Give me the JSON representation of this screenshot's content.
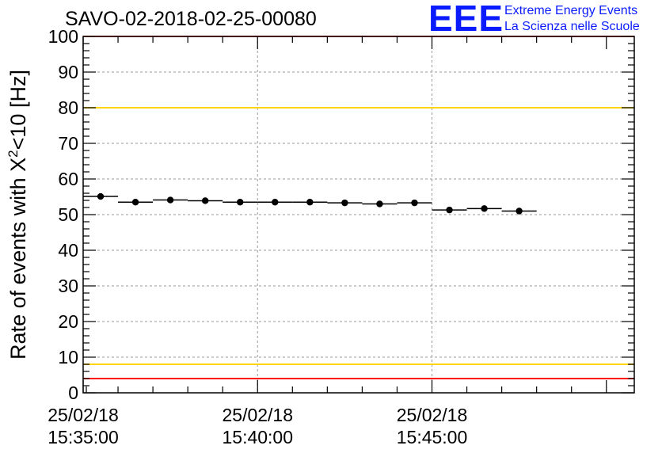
{
  "title": "SAVO-02-2018-02-25-00080",
  "logo": {
    "letters": "EEE",
    "line1": "Extreme Energy Events",
    "line2": "La Scienza nelle Scuole",
    "color": "#0a1cff"
  },
  "chart_data": {
    "type": "scatter",
    "ylabel_base": "Rate of events with X",
    "ylabel_sup": "2",
    "ylabel_tail": "<10 [Hz]",
    "ylim": [
      0,
      100
    ],
    "yticks": [
      "0",
      "10",
      "20",
      "30",
      "40",
      "50",
      "60",
      "70",
      "80",
      "90",
      "100"
    ],
    "xlim_minutes": [
      0,
      15.8
    ],
    "xticks": [
      {
        "minute": 0,
        "date": "25/02/18",
        "time": "15:35:00"
      },
      {
        "minute": 5,
        "date": "25/02/18",
        "time": "15:40:00"
      },
      {
        "minute": 10,
        "date": "25/02/18",
        "time": "15:45:00"
      }
    ],
    "grid": true,
    "reference_lines": [
      {
        "y": 100,
        "color": "#ff0000"
      },
      {
        "y": 80,
        "color": "#ffd500"
      },
      {
        "y": 8,
        "color": "#ffd500"
      },
      {
        "y": 4,
        "color": "#ff0000"
      }
    ],
    "points": [
      {
        "x": 0.5,
        "y": 55.1,
        "xerr": 0.5
      },
      {
        "x": 1.5,
        "y": 53.5,
        "xerr": 0.5
      },
      {
        "x": 2.5,
        "y": 54.1,
        "xerr": 0.5
      },
      {
        "x": 3.5,
        "y": 53.9,
        "xerr": 0.5
      },
      {
        "x": 4.5,
        "y": 53.5,
        "xerr": 0.5
      },
      {
        "x": 5.5,
        "y": 53.5,
        "xerr": 0.5
      },
      {
        "x": 6.5,
        "y": 53.5,
        "xerr": 0.5
      },
      {
        "x": 7.5,
        "y": 53.3,
        "xerr": 0.5
      },
      {
        "x": 8.5,
        "y": 53.0,
        "xerr": 0.5
      },
      {
        "x": 9.5,
        "y": 53.3,
        "xerr": 0.5
      },
      {
        "x": 10.5,
        "y": 51.3,
        "xerr": 0.5
      },
      {
        "x": 11.5,
        "y": 51.7,
        "xerr": 0.5
      },
      {
        "x": 12.5,
        "y": 51.0,
        "xerr": 0.5
      }
    ],
    "marker_color": "#000000"
  }
}
